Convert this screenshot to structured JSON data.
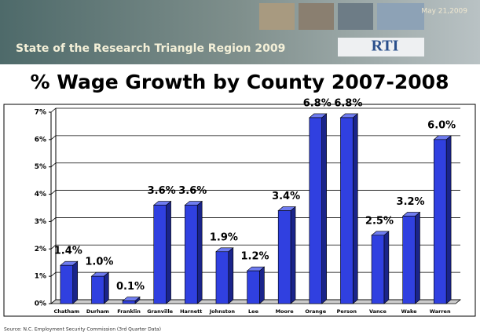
{
  "banner": {
    "title": "State of the Research Triangle Region 2009",
    "date": "May 21,2009",
    "logo": "RTI"
  },
  "chart_data": {
    "type": "bar",
    "title": "% Wage Growth by County 2007-2008",
    "categories": [
      "Chatham",
      "Durham",
      "Franklin",
      "Granville",
      "Harnett",
      "Johnston",
      "Lee",
      "Moore",
      "Orange",
      "Person",
      "Vance",
      "Wake",
      "Warren"
    ],
    "values": [
      1.4,
      1.0,
      0.1,
      3.6,
      3.6,
      1.9,
      1.2,
      3.4,
      6.8,
      6.8,
      2.5,
      3.2,
      6.0
    ],
    "value_labels": [
      "1.4%",
      "1.0%",
      "0.1%",
      "3.6%",
      "3.6%",
      "1.9%",
      "1.2%",
      "3.4%",
      "6.8%",
      "6.8%",
      "2.5%",
      "3.2%",
      "6.0%"
    ],
    "color": "#3040e0",
    "ylim": [
      0,
      7
    ],
    "yticks": [
      {
        "value": 0,
        "label": "0%"
      },
      {
        "value": 1,
        "label": "1%"
      },
      {
        "value": 2,
        "label": "2%"
      },
      {
        "value": 3,
        "label": "3%"
      },
      {
        "value": 4,
        "label": "4%"
      },
      {
        "value": 5,
        "label": "5%"
      },
      {
        "value": 6,
        "label": "6%"
      },
      {
        "value": 7,
        "label": "7%"
      }
    ],
    "grid": true
  },
  "source": "Source: N.C. Employment Security Commission (3rd Quarter Data)"
}
